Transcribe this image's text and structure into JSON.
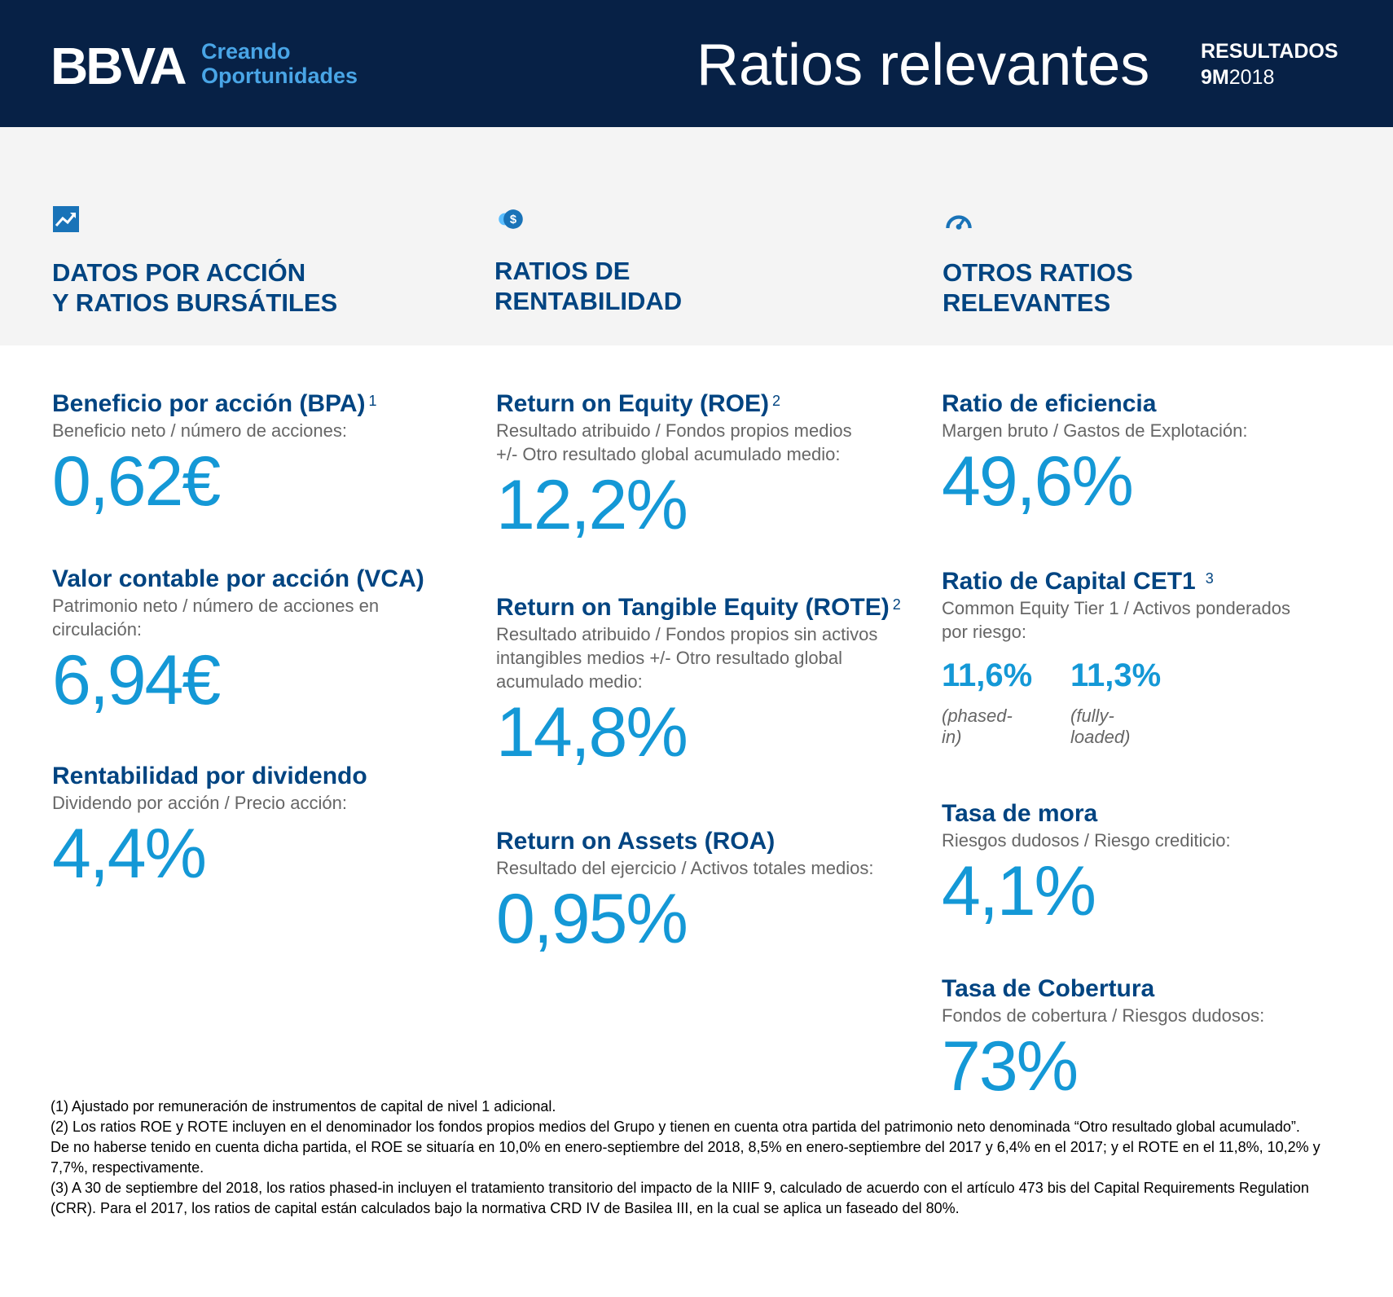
{
  "header": {
    "logo": "BBVA",
    "tagline_line1": "Creando",
    "tagline_line2": "Oportunidades",
    "title": "Ratios relevantes",
    "report_label": "RESULTADOS",
    "report_period_bold": "9M",
    "report_period_year": "2018",
    "colors": {
      "background": "#072146",
      "accent": "#49A5E6"
    }
  },
  "sections": [
    {
      "icon": "trend-chart-icon",
      "title_line1": "DATOS POR ACCIÓN",
      "title_line2": "Y RATIOS BURSÁTILES"
    },
    {
      "icon": "coins-dollar-icon",
      "title_line1": "RATIOS  DE",
      "title_line2": "RENTABILIDAD"
    },
    {
      "icon": "speedometer-icon",
      "title_line1": "OTROS RATIOS",
      "title_line2": "RELEVANTES"
    }
  ],
  "metrics": {
    "bpa": {
      "title": "Beneficio por acción (BPA)",
      "note": "1",
      "desc": "Beneficio neto / número de acciones:",
      "value": "0,62€"
    },
    "vca": {
      "title": "Valor contable por acción (VCA)",
      "desc_line1": "Patrimonio neto / número de acciones en",
      "desc_line2": "circulación:",
      "value": "6,94€"
    },
    "dividend": {
      "title": "Rentabilidad por dividendo",
      "desc": "Dividendo por acción / Precio acción:",
      "value": "4,4%"
    },
    "roe": {
      "title": "Return on Equity (ROE)",
      "note": "2",
      "desc_line1": "Resultado atribuido / Fondos propios medios",
      "desc_line2": "+/- Otro resultado global acumulado medio:",
      "value": "12,2%"
    },
    "rote": {
      "title": "Return on Tangible Equity (ROTE)",
      "note": "2",
      "desc_line1": "Resultado atribuido / Fondos propios sin activos",
      "desc_line2": "intangibles medios +/- Otro resultado global",
      "desc_line3": "acumulado medio:",
      "value": "14,8%"
    },
    "roa": {
      "title": "Return on Assets (ROA)",
      "desc": "Resultado del ejercicio / Activos totales medios:",
      "value": "0,95%"
    },
    "efficiency": {
      "title": "Ratio de eficiencia",
      "desc": "Margen bruto / Gastos de Explotación:",
      "value": "49,6%"
    },
    "cet1": {
      "title": "Ratio de Capital CET1",
      "note": "3",
      "desc_line1": "Common Equity Tier 1 / Activos ponderados",
      "desc_line2": "por riesgo:",
      "phased_value": "11,6%",
      "phased_label": "(phased-in)",
      "fully_value": "11,3%",
      "fully_label": "(fully-loaded)"
    },
    "npl": {
      "title": "Tasa de mora",
      "desc": "Riesgos dudosos / Riesgo crediticio:",
      "value": "4,1%"
    },
    "coverage": {
      "title": "Tasa de  Cobertura",
      "desc": "Fondos de cobertura / Riesgos dudosos:",
      "value": "73%"
    }
  },
  "footnotes": {
    "n1": "(1) Ajustado por remuneración de instrumentos de capital de nivel 1 adicional.",
    "n2": "(2) Los ratios ROE y ROTE incluyen en el denominador los fondos propios medios del Grupo y tienen en cuenta otra partida del patrimonio neto denominada “Otro resultado global acumulado”. De no haberse tenido en cuenta dicha partida, el ROE se situaría en 10,0% en enero-septiembre del 2018, 8,5% en enero-septiembre del 2017 y 6,4% en el 2017; y el ROTE en el 11,8%, 10,2% y 7,7%, respectivamente.",
    "n3": "(3) A 30 de septiembre del 2018, los ratios phased-in incluyen el tratamiento transitorio del impacto de la NIIF 9, calculado de acuerdo con el artículo 473 bis del Capital Requirements Regulation (CRR). Para el 2017, los ratios de capital están calculados bajo la normativa CRD IV de Basilea III, en la cual se aplica un faseado del 80%."
  }
}
